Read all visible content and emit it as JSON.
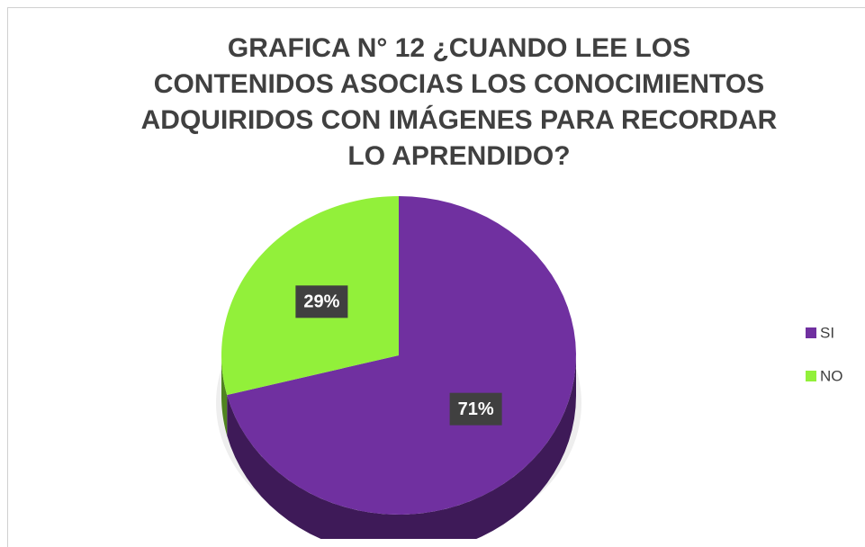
{
  "chart_data": {
    "type": "pie",
    "title": "GRAFICA N° 12 ¿CUANDO LEE LOS CONTENIDOS ASOCIAS LOS CONOCIMIENTOS ADQUIRIDOS CON IMÁGENES PARA RECORDAR LO APRENDIDO?",
    "categories": [
      "SI",
      "NO"
    ],
    "values": [
      71,
      29
    ],
    "value_labels": [
      "71%",
      "29%"
    ],
    "colors": [
      "#7030a0",
      "#92f03a"
    ],
    "legend": "right"
  }
}
